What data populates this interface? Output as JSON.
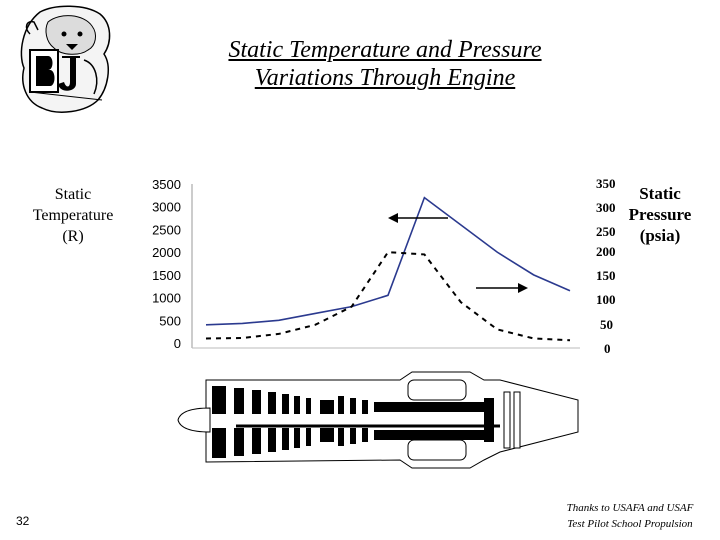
{
  "title": {
    "line1": "Static Temperature and Pressure",
    "line2": "Variations Through Engine"
  },
  "left_axis": {
    "line1": "Static",
    "line2": "Temperature",
    "line3": "(R)"
  },
  "right_axis": {
    "line1": "Static",
    "line2": "Pressure",
    "line3": "(psia)"
  },
  "right_ticks": [
    "350",
    "300",
    "250",
    "200",
    "150",
    "100",
    "50",
    "0"
  ],
  "footer": {
    "page_number": "32",
    "credit_line1": "Thanks to USAFA and USAF",
    "credit_line2": "Test Pilot School Propulsion"
  },
  "colors": {
    "temperature_line": "#2b3a8f",
    "pressure_line": "#000000",
    "axis": "#999999"
  },
  "icons": {
    "logo": "baylor-bear-bu-logo-icon",
    "engine": "jet-engine-cutaway-icon",
    "arrow_left": "arrow-left-icon",
    "arrow_right": "arrow-right-icon"
  },
  "chart_data": {
    "type": "line",
    "ylim": [
      0,
      3500
    ],
    "yticks": [
      0,
      500,
      1000,
      1500,
      2000,
      2500,
      3000,
      3500
    ],
    "right_ylim": [
      0,
      350
    ],
    "grid": false,
    "x": [
      0,
      1,
      2,
      3,
      4,
      5,
      6,
      7,
      8,
      9,
      10
    ],
    "series": [
      {
        "style": "solid",
        "axis": "left",
        "values": [
          400,
          430,
          500,
          650,
          800,
          1050,
          3200,
          2600,
          2000,
          1500,
          1150
        ]
      },
      {
        "style": "dashed",
        "axis": "left",
        "values": [
          100,
          110,
          200,
          400,
          800,
          2000,
          1950,
          900,
          300,
          100,
          60
        ]
      }
    ]
  }
}
